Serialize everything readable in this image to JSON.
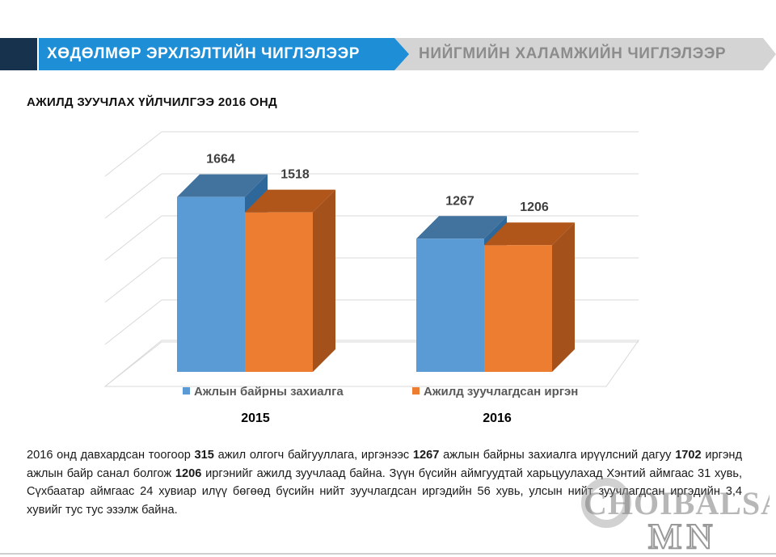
{
  "header": {
    "tab_active": "ХӨДӨЛМӨР ЭРХЛЭЛТИЙН ЧИГЛЭЛЭЭР",
    "tab_inactive": "НИЙГМИЙН ХАЛАМЖИЙН ЧИГЛЭЛЭЭР"
  },
  "colors": {
    "accent_blue": "#1e8fd6",
    "dark_navy": "#17324d",
    "series1": "#5b9bd5",
    "series2": "#ed7d31"
  },
  "chart_data": {
    "type": "bar",
    "title": "АЖИЛД ЗУУЧЛАХ ҮЙЛЧИЛГЭЭ 2016 ОНД",
    "categories": [
      "2015",
      "2016"
    ],
    "series": [
      {
        "name": "Ажлын байрны захиалга",
        "values": [
          1664,
          1267
        ]
      },
      {
        "name": "Ажилд зуучлагдсан иргэн",
        "values": [
          1518,
          1206
        ]
      }
    ],
    "data_labels": true,
    "ylim": [
      0,
      2000
    ],
    "grid": true,
    "legend": "bottom",
    "style": "3d-clustered-column"
  },
  "paragraph": {
    "s1": "2016 онд давхардсан тоогоор ",
    "b1": "315",
    "s2": " ажил олгогч байгууллага, иргэнээс ",
    "b2": "1267",
    "s3": " ажлын байрны захиалга ирүүлсний дагуу ",
    "b3": "1702",
    "s4": " иргэнд ажлын байр санал болгож ",
    "b4": "1206",
    "s5": " иргэнийг ажилд зуучлаад байна. Зүүн бүсийн аймгуудтай харьцуулахад Хэнтий аймгаас 31 хувь, Сүхбаатар аймгаас 24 хувиар илүү бөгөөд бүсийн нийт зуучлагдсан иргэдийн 56 хувь, улсын нийт зуучлагдсан иргэдийн 3,4 хувийг тус тус эзэлж байна."
  },
  "watermark": {
    "line1": "CHOIBALSAN",
    "line2": "MN"
  }
}
